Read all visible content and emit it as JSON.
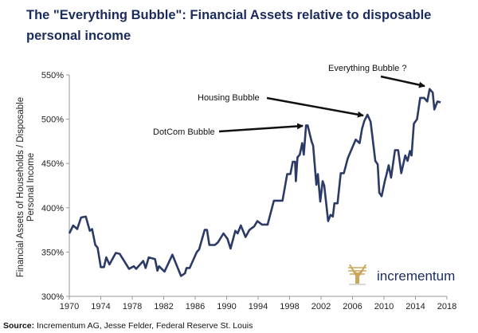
{
  "chart_data": {
    "type": "line",
    "title": "The \"Everything Bubble\": Financial Assets relative to disposable personal income",
    "ylabel_lines": [
      "Financial Assets of Households / Disposable",
      "Personal Income"
    ],
    "xlabel": "",
    "xlim": [
      1970,
      2018
    ],
    "ylim": [
      300,
      550
    ],
    "x_ticks": [
      "1970",
      "1974",
      "1978",
      "1982",
      "1986",
      "1990",
      "1994",
      "1998",
      "2002",
      "2006",
      "2010",
      "2014",
      "2018"
    ],
    "y_ticks": [
      "300%",
      "350%",
      "400%",
      "450%",
      "500%",
      "550%"
    ],
    "grid": false,
    "line_color": "#2b3a67",
    "series": [
      {
        "x": [
          1970.0,
          1970.5,
          1971.0,
          1971.5,
          1972.1,
          1972.6,
          1972.9,
          1973.3,
          1973.6,
          1974.0,
          1974.4,
          1974.7,
          1975.1,
          1975.9,
          1976.4,
          1977.6,
          1978.2,
          1978.5,
          1979.4,
          1979.7,
          1980.1,
          1980.9,
          1981.2,
          1981.4,
          1982.1,
          1983.1,
          1984.2,
          1984.7,
          1984.9,
          1985.3,
          1986.2,
          1986.5,
          1987.2,
          1987.5,
          1987.8,
          1988.5,
          1988.9,
          1989.6,
          1990.1,
          1990.5,
          1991.1,
          1991.4,
          1991.8,
          1992.4,
          1992.9,
          1993.5,
          1993.9,
          1994.5,
          1995.2,
          1996.0,
          1997.1,
          1997.7,
          1998.1,
          1998.4,
          1998.7,
          1998.8,
          1999.0,
          1999.3,
          1999.6,
          1999.8,
          2000.1,
          2000.3,
          2000.8,
          2001.0,
          2001.4,
          2001.6,
          2001.9,
          2002.2,
          2002.4,
          2002.9,
          2003.2,
          2003.5,
          2003.7,
          2004.1,
          2004.5,
          2004.9,
          2005.4,
          2006.4,
          2006.9,
          2007.2,
          2007.5,
          2007.9,
          2008.3,
          2008.9,
          2009.2,
          2009.4,
          2009.7,
          2010.1,
          2010.3,
          2010.6,
          2010.9,
          2011.4,
          2011.8,
          2012.2,
          2012.7,
          2013.0,
          2013.3,
          2013.5,
          2013.8,
          2014.2,
          2014.6,
          2015.1,
          2015.5,
          2015.8,
          2016.2,
          2016.4,
          2016.8,
          2017.2
        ],
        "y": [
          371,
          380,
          376,
          389,
          390,
          374,
          376,
          358,
          355,
          333,
          333,
          344,
          336,
          349,
          348,
          331,
          334,
          331,
          340,
          332,
          344,
          342,
          329,
          334,
          328,
          347,
          323,
          326,
          332,
          332,
          350,
          353,
          375,
          375,
          358,
          358,
          361,
          371,
          365,
          354,
          374,
          371,
          380,
          367,
          375,
          379,
          385,
          381,
          381,
          408,
          408,
          438,
          438,
          452,
          452,
          430,
          457,
          460,
          473,
          460,
          493,
          493,
          475,
          470,
          426,
          438,
          407,
          430,
          425,
          385,
          392,
          390,
          405,
          405,
          439,
          439,
          456,
          477,
          473,
          489,
          498,
          505,
          497,
          453,
          449,
          417,
          413,
          430,
          437,
          448,
          434,
          465,
          465,
          439,
          459,
          453,
          464,
          459,
          495,
          500,
          524,
          524,
          520,
          534,
          530,
          511,
          520,
          519
        ]
      }
    ],
    "annotations": [
      {
        "text": "DotCom Bubble",
        "x": 2000.2,
        "y": 493
      },
      {
        "text": "Housing Bubble",
        "x": 2007.9,
        "y": 505
      },
      {
        "text": "Everything Bubble ?",
        "x": 2015.8,
        "y": 534
      }
    ]
  },
  "logo": {
    "text": "incrementum",
    "tree_color": "#c9a75a"
  },
  "source": {
    "label": "Source:",
    "text": "Incrementum AG, Jesse Felder, Federal Reserve St. Louis"
  }
}
